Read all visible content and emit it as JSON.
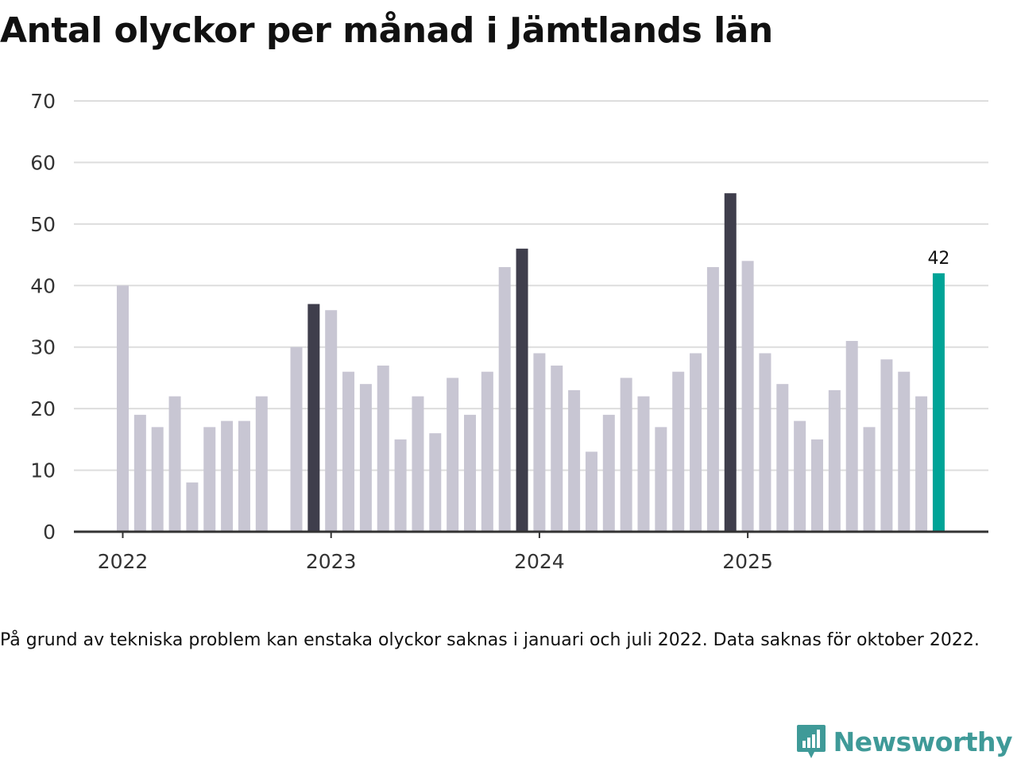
{
  "title": "Antal olyckor per månad i Jämtlands län",
  "footnote": "På grund av tekniska problem kan enstaka olyckor saknas i januari och juli 2022. Data saknas för oktober 2022.",
  "brand": {
    "name": "Newsworthy",
    "logo_icon": "bar-chart-speech-bubble-icon"
  },
  "colors": {
    "bar_default": "#c8c6d3",
    "bar_december": "#3f3e4c",
    "bar_latest": "#00a497",
    "grid": "#dddddd",
    "axis": "#333333",
    "brand": "#3f9a98"
  },
  "chart_data": {
    "type": "bar",
    "title": "Antal olyckor per månad i Jämtlands län",
    "xlabel": "",
    "ylabel": "",
    "ylim": [
      0,
      70
    ],
    "yticks": [
      0,
      10,
      20,
      30,
      40,
      50,
      60,
      70
    ],
    "grid": true,
    "x_tick_labels": [
      {
        "label": "2022",
        "index": 0
      },
      {
        "label": "2023",
        "index": 12
      },
      {
        "label": "2024",
        "index": 24
      },
      {
        "label": "2025",
        "index": 36
      }
    ],
    "months": [
      "2022-01",
      "2022-02",
      "2022-03",
      "2022-04",
      "2022-05",
      "2022-06",
      "2022-07",
      "2022-08",
      "2022-09",
      "2022-10",
      "2022-11",
      "2022-12",
      "2023-01",
      "2023-02",
      "2023-03",
      "2023-04",
      "2023-05",
      "2023-06",
      "2023-07",
      "2023-08",
      "2023-09",
      "2023-10",
      "2023-11",
      "2023-12",
      "2024-01",
      "2024-02",
      "2024-03",
      "2024-04",
      "2024-05",
      "2024-06",
      "2024-07",
      "2024-08",
      "2024-09",
      "2024-10",
      "2024-11",
      "2024-12",
      "2025-01",
      "2025-02",
      "2025-03",
      "2025-04",
      "2025-05",
      "2025-06",
      "2025-07",
      "2025-08",
      "2025-09",
      "2025-10",
      "2025-11",
      "2025-12"
    ],
    "values": [
      40,
      19,
      17,
      22,
      8,
      17,
      18,
      18,
      22,
      null,
      30,
      37,
      36,
      26,
      24,
      27,
      15,
      22,
      16,
      25,
      19,
      26,
      43,
      46,
      29,
      27,
      23,
      13,
      19,
      25,
      22,
      17,
      26,
      29,
      43,
      55,
      44,
      29,
      24,
      18,
      15,
      23,
      31,
      17,
      28,
      26,
      22,
      42
    ],
    "highlight": {
      "december_indices": [
        11,
        23,
        35
      ],
      "latest_index": 47
    },
    "annotations": [
      {
        "index": 47,
        "text": "42"
      }
    ]
  }
}
